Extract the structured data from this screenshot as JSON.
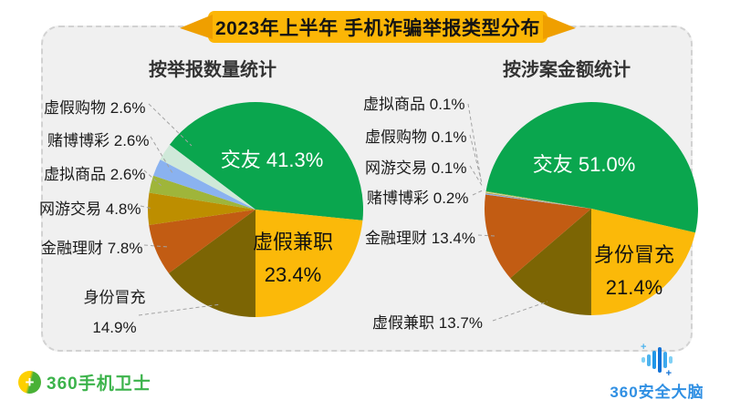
{
  "header": {
    "title": "2023年上半年 手机诈骗举报类型分布"
  },
  "chart_data": [
    {
      "type": "pie",
      "title": "按举报数量统计",
      "start_angle_deg": -52.9,
      "legend_position": "none",
      "slices": [
        {
          "key": "jiaoyou",
          "name": "交友",
          "value": 41.3,
          "display": "41.3%",
          "color": "#0aa64e",
          "label": "inside",
          "label_color": "white"
        },
        {
          "key": "xujia-jianzhi",
          "name": "虚假兼职",
          "value": 23.4,
          "display": "23.4%",
          "color": "#fbb909",
          "label": "inside",
          "label_color": "black"
        },
        {
          "key": "shenfen-maochong",
          "name": "身份冒充",
          "value": 14.9,
          "display": "14.9%",
          "color": "#7c6504",
          "label": "outside"
        },
        {
          "key": "jinrong-licai",
          "name": "金融理财",
          "value": 7.8,
          "display": "7.8%",
          "color": "#c25c13",
          "label": "outside"
        },
        {
          "key": "wangyou-jiaoyi",
          "name": "网游交易",
          "value": 4.8,
          "display": "4.8%",
          "color": "#bd8e00",
          "label": "outside"
        },
        {
          "key": "xuni-shangpin",
          "name": "虚拟商品",
          "value": 2.6,
          "display": "2.6%",
          "color": "#9fb53a",
          "label": "outside"
        },
        {
          "key": "dubo-bocai",
          "name": "赌博博彩",
          "value": 2.6,
          "display": "2.6%",
          "color": "#8ab2f0",
          "label": "outside"
        },
        {
          "key": "xujia-gouwu",
          "name": "虚假购物",
          "value": 2.6,
          "display": "2.6%",
          "color": "#cfe9d9",
          "label": "outside"
        }
      ]
    },
    {
      "type": "pie",
      "title": "按涉案金额统计",
      "start_angle_deg": -80.6,
      "legend_position": "none",
      "slices": [
        {
          "key": "jiaoyou",
          "name": "交友",
          "value": 51.0,
          "display": "51.0%",
          "color": "#0aa64e",
          "label": "inside",
          "label_color": "white"
        },
        {
          "key": "shenfen-maochong",
          "name": "身份冒充",
          "value": 21.4,
          "display": "21.4%",
          "color": "#fbb909",
          "label": "inside",
          "label_color": "black"
        },
        {
          "key": "xujia-jianzhi",
          "name": "虚假兼职",
          "value": 13.7,
          "display": "13.7%",
          "color": "#7c6504",
          "label": "outside"
        },
        {
          "key": "jinrong-licai",
          "name": "金融理财",
          "value": 13.4,
          "display": "13.4%",
          "color": "#c25c13",
          "label": "outside"
        },
        {
          "key": "dubo-bocai",
          "name": "赌博博彩",
          "value": 0.2,
          "display": "0.2%",
          "color": "#8ab2f0",
          "label": "outside"
        },
        {
          "key": "wangyou-jiaoyi",
          "name": "网游交易",
          "value": 0.1,
          "display": "0.1%",
          "color": "#bd8e00",
          "label": "outside"
        },
        {
          "key": "xujia-gouwu",
          "name": "虚假购物",
          "value": 0.1,
          "display": "0.1%",
          "color": "#cfe9d9",
          "label": "outside"
        },
        {
          "key": "xuni-shangpin",
          "name": "虚拟商品",
          "value": 0.1,
          "display": "0.1%",
          "color": "#9fb53a",
          "label": "outside"
        }
      ]
    }
  ],
  "footer": {
    "left_brand": "360手机卫士",
    "right_brand": "360安全大脑",
    "left_icon_glyph": "+"
  },
  "colors": {
    "banner_yellow": "#fcb606",
    "banner_wing_yellow": "#ef9f00",
    "panel_bg": "#f0f0f0",
    "brand_green": "#3cb34b",
    "brand_blue": "#2f8fe3"
  }
}
